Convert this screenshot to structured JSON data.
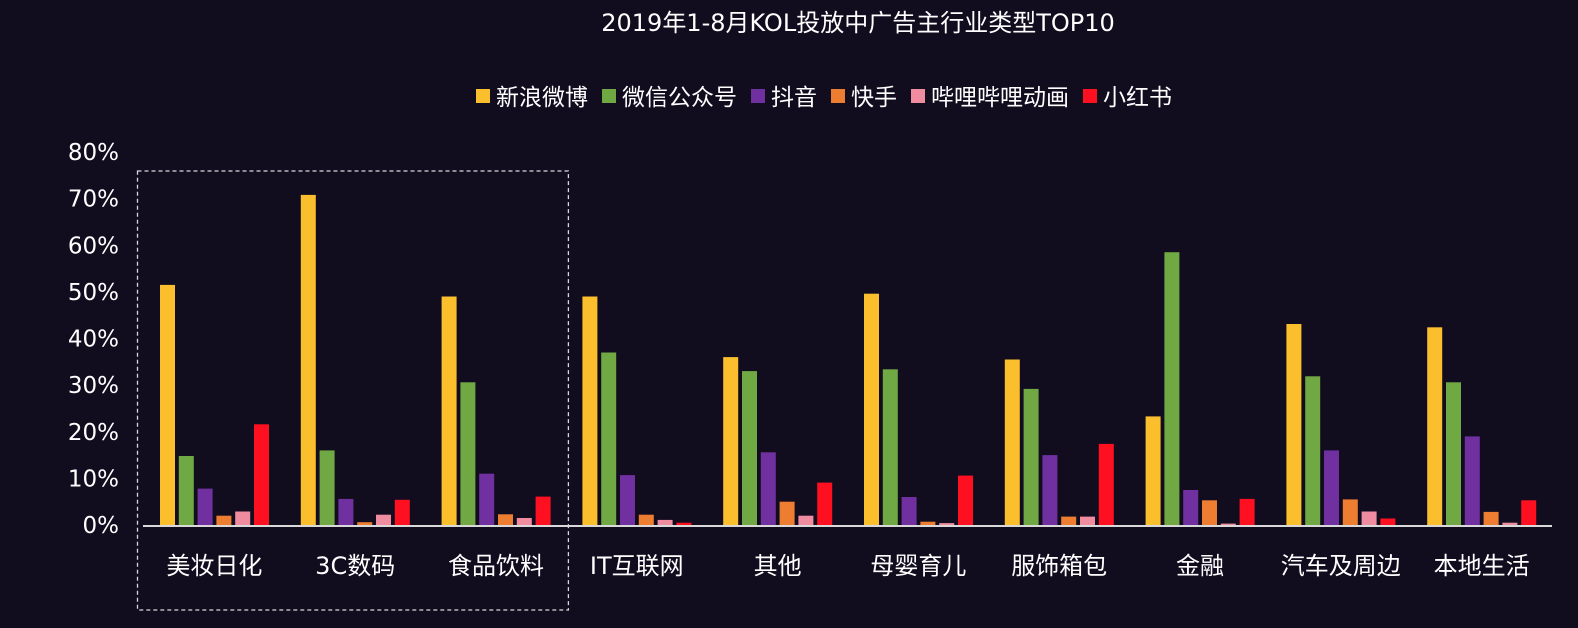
{
  "chart_data": {
    "type": "bar",
    "title": "2019年1-8月KOL投放中广告主行业类型TOP10",
    "xlabel": "",
    "ylabel": "",
    "ylim": [
      0,
      80
    ],
    "yticks": [
      "0%",
      "10%",
      "20%",
      "30%",
      "40%",
      "50%",
      "60%",
      "70%",
      "80%"
    ],
    "grid": false,
    "legend_position": "top",
    "highlight": {
      "categories": [
        "美妆日化",
        "3C数码",
        "食品饮料"
      ],
      "style": "dashed-box"
    },
    "categories": [
      "美妆日化",
      "3C数码",
      "食品饮料",
      "IT互联网",
      "其他",
      "母婴育儿",
      "服饰箱包",
      "金融",
      "汽车及周边",
      "本地生活"
    ],
    "series": [
      {
        "name": "新浪微博",
        "color": "#fbbe2c",
        "values": [
          51.5,
          70.8,
          49.0,
          49.0,
          36.0,
          49.6,
          35.5,
          23.3,
          43.1,
          42.4
        ]
      },
      {
        "name": "微信公众号",
        "color": "#70a844",
        "values": [
          14.8,
          16.0,
          30.6,
          37.0,
          33.0,
          33.4,
          29.2,
          58.5,
          31.9,
          30.6
        ]
      },
      {
        "name": "抖音",
        "color": "#7030a0",
        "values": [
          7.8,
          5.6,
          11.0,
          10.7,
          15.6,
          6.0,
          15.0,
          7.5,
          16.0,
          19.0
        ]
      },
      {
        "name": "快手",
        "color": "#ed7d31",
        "values": [
          2.0,
          0.6,
          2.3,
          2.2,
          5.0,
          0.7,
          1.8,
          5.3,
          5.5,
          2.8
        ]
      },
      {
        "name": "哔哩哔哩动画",
        "color": "#f08ca0",
        "values": [
          2.9,
          2.2,
          1.5,
          1.1,
          2.0,
          0.4,
          1.8,
          0.3,
          2.9,
          0.5
        ]
      },
      {
        "name": "小红书",
        "color": "#ff1020",
        "values": [
          21.6,
          5.4,
          6.1,
          0.5,
          9.1,
          10.6,
          17.4,
          5.6,
          1.4,
          5.3
        ]
      }
    ]
  }
}
